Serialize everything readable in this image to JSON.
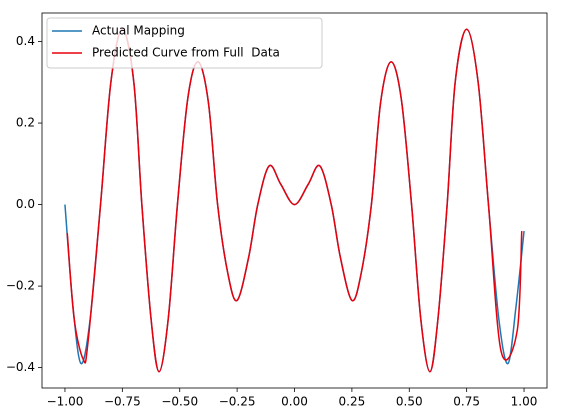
{
  "chart_data": {
    "type": "line",
    "series": [
      {
        "name": "Actual Mapping",
        "color": "#1f77b4",
        "x": [
          -1.0,
          -0.965,
          -0.93,
          -0.89,
          -0.845,
          -0.8,
          -0.75,
          -0.7,
          -0.665,
          -0.625,
          -0.59,
          -0.55,
          -0.51,
          -0.465,
          -0.42,
          -0.375,
          -0.335,
          -0.29,
          -0.25,
          -0.2,
          -0.16,
          -0.11,
          -0.06,
          0.0,
          0.06,
          0.11,
          0.16,
          0.2,
          0.25,
          0.29,
          0.335,
          0.375,
          0.42,
          0.465,
          0.51,
          0.55,
          0.59,
          0.625,
          0.665,
          0.7,
          0.75,
          0.8,
          0.845,
          0.89,
          0.93,
          0.965,
          1.0
        ],
        "values": [
          0.0,
          -0.25,
          -0.39,
          -0.28,
          0.0,
          0.3,
          0.43,
          0.3,
          0.0,
          -0.28,
          -0.41,
          -0.28,
          0.0,
          0.26,
          0.35,
          0.25,
          0.0,
          -0.17,
          -0.235,
          -0.13,
          0.0,
          0.095,
          0.05,
          0.0,
          0.05,
          0.095,
          0.0,
          -0.13,
          -0.235,
          -0.17,
          0.0,
          0.25,
          0.35,
          0.26,
          0.0,
          -0.28,
          -0.41,
          -0.28,
          0.0,
          0.3,
          0.43,
          0.3,
          0.0,
          -0.28,
          -0.39,
          -0.25,
          -0.065
        ]
      },
      {
        "name": "Predicted Curve from Full  Data",
        "color": "#e8000b",
        "x": [
          -0.99,
          -0.96,
          -0.92,
          -0.9,
          -0.845,
          -0.8,
          -0.75,
          -0.7,
          -0.665,
          -0.625,
          -0.59,
          -0.55,
          -0.51,
          -0.465,
          -0.42,
          -0.375,
          -0.335,
          -0.29,
          -0.25,
          -0.2,
          -0.16,
          -0.11,
          -0.06,
          0.0,
          0.06,
          0.11,
          0.16,
          0.2,
          0.25,
          0.29,
          0.335,
          0.375,
          0.42,
          0.465,
          0.51,
          0.55,
          0.59,
          0.625,
          0.665,
          0.7,
          0.75,
          0.8,
          0.845,
          0.9,
          0.97,
          0.99
        ],
        "values": [
          -0.07,
          -0.28,
          -0.38,
          -0.34,
          0.0,
          0.3,
          0.43,
          0.3,
          0.0,
          -0.28,
          -0.41,
          -0.28,
          0.0,
          0.26,
          0.35,
          0.25,
          0.0,
          -0.17,
          -0.235,
          -0.13,
          0.0,
          0.095,
          0.05,
          0.0,
          0.05,
          0.095,
          0.0,
          -0.13,
          -0.235,
          -0.17,
          0.0,
          0.25,
          0.35,
          0.26,
          0.0,
          -0.28,
          -0.41,
          -0.28,
          0.0,
          0.3,
          0.43,
          0.3,
          0.0,
          -0.36,
          -0.31,
          -0.065
        ]
      }
    ],
    "xlim": [
      -1.1,
      1.1
    ],
    "ylim": [
      -0.45,
      0.47
    ],
    "xticks": [
      {
        "value": -1.0,
        "label": "−1.00"
      },
      {
        "value": -0.75,
        "label": "−0.75"
      },
      {
        "value": -0.5,
        "label": "−0.50"
      },
      {
        "value": -0.25,
        "label": "−0.25"
      },
      {
        "value": 0.0,
        "label": "0.00"
      },
      {
        "value": 0.25,
        "label": "0.25"
      },
      {
        "value": 0.5,
        "label": "0.50"
      },
      {
        "value": 0.75,
        "label": "0.75"
      },
      {
        "value": 1.0,
        "label": "1.00"
      }
    ],
    "yticks": [
      {
        "value": -0.4,
        "label": "−0.4"
      },
      {
        "value": -0.2,
        "label": "−0.2"
      },
      {
        "value": 0.0,
        "label": "0.0"
      },
      {
        "value": 0.2,
        "label": "0.2"
      },
      {
        "value": 0.4,
        "label": "0.4"
      }
    ],
    "legend": "upper left"
  }
}
